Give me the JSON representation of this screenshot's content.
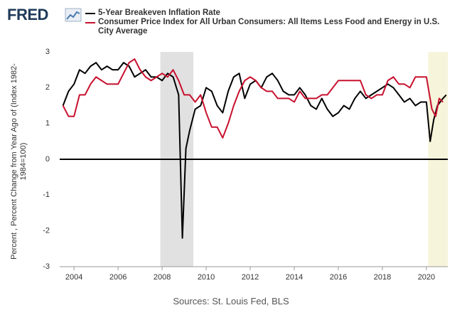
{
  "logo": "FRED",
  "chart_data": {
    "type": "line",
    "ylabel": "Percent , Percent Change from Year Ago of (Index 1982-1984=100)",
    "sources": "Sources: St. Louis Fed, BLS",
    "xlim": [
      2003.35,
      2020.97
    ],
    "ylim": [
      -3,
      3
    ],
    "xticks": [
      2004,
      2006,
      2008,
      2010,
      2012,
      2014,
      2016,
      2018,
      2020
    ],
    "yticks": [
      -3,
      -2,
      -1,
      0,
      1,
      2,
      3
    ],
    "zero_line": true,
    "shaded": [
      {
        "start": 2007.92,
        "end": 2009.42,
        "color": "#e1e1e1"
      },
      {
        "start": 2020.08,
        "end": 2020.97,
        "color": "#f6f4da"
      }
    ],
    "series": [
      {
        "name": "5-Year Breakeven Inflation Rate",
        "color": "#000000",
        "x": [
          2003.5,
          2003.75,
          2004,
          2004.25,
          2004.5,
          2004.75,
          2005,
          2005.25,
          2005.5,
          2005.75,
          2006,
          2006.25,
          2006.5,
          2006.75,
          2007,
          2007.25,
          2007.5,
          2007.75,
          2008,
          2008.25,
          2008.5,
          2008.75,
          2008.92,
          2009.08,
          2009.25,
          2009.5,
          2009.75,
          2010,
          2010.25,
          2010.5,
          2010.75,
          2011,
          2011.25,
          2011.5,
          2011.75,
          2012,
          2012.25,
          2012.5,
          2012.75,
          2013,
          2013.25,
          2013.5,
          2013.75,
          2014,
          2014.25,
          2014.5,
          2014.75,
          2015,
          2015.25,
          2015.5,
          2015.75,
          2016,
          2016.25,
          2016.5,
          2016.75,
          2017,
          2017.25,
          2017.5,
          2017.75,
          2018,
          2018.25,
          2018.5,
          2018.75,
          2019,
          2019.25,
          2019.5,
          2019.75,
          2020,
          2020.17,
          2020.33,
          2020.5,
          2020.75,
          2020.9
        ],
        "values": [
          1.5,
          1.9,
          2.1,
          2.5,
          2.4,
          2.6,
          2.7,
          2.5,
          2.6,
          2.5,
          2.5,
          2.7,
          2.6,
          2.3,
          2.4,
          2.5,
          2.3,
          2.3,
          2.2,
          2.4,
          2.3,
          1.8,
          -2.2,
          0.3,
          0.8,
          1.4,
          1.5,
          2.0,
          1.9,
          1.5,
          1.3,
          1.9,
          2.3,
          2.4,
          1.7,
          2.1,
          2.2,
          2.0,
          2.3,
          2.4,
          2.2,
          1.9,
          1.8,
          1.8,
          2.0,
          1.8,
          1.5,
          1.4,
          1.7,
          1.4,
          1.2,
          1.3,
          1.5,
          1.4,
          1.7,
          1.9,
          1.7,
          1.8,
          1.9,
          2.0,
          2.1,
          2.0,
          1.8,
          1.6,
          1.7,
          1.5,
          1.6,
          1.6,
          0.5,
          1.1,
          1.5,
          1.7,
          1.8
        ]
      },
      {
        "name": "Consumer Price Index for All Urban Consumers: All Items Less Food and Energy in U.S. City Average",
        "color": "#c8102e",
        "x": [
          2003.5,
          2003.75,
          2004,
          2004.25,
          2004.5,
          2004.75,
          2005,
          2005.25,
          2005.5,
          2005.75,
          2006,
          2006.25,
          2006.5,
          2006.75,
          2007,
          2007.25,
          2007.5,
          2007.75,
          2008,
          2008.25,
          2008.5,
          2008.75,
          2009,
          2009.25,
          2009.5,
          2009.75,
          2010,
          2010.25,
          2010.5,
          2010.75,
          2011,
          2011.25,
          2011.5,
          2011.75,
          2012,
          2012.25,
          2012.5,
          2012.75,
          2013,
          2013.25,
          2013.5,
          2013.75,
          2014,
          2014.25,
          2014.5,
          2014.75,
          2015,
          2015.25,
          2015.5,
          2015.75,
          2016,
          2016.25,
          2016.5,
          2016.75,
          2017,
          2017.25,
          2017.5,
          2017.75,
          2018,
          2018.25,
          2018.5,
          2018.75,
          2019,
          2019.25,
          2019.5,
          2019.75,
          2020,
          2020.25,
          2020.42,
          2020.58,
          2020.75
        ],
        "values": [
          1.5,
          1.2,
          1.2,
          1.8,
          1.8,
          2.1,
          2.3,
          2.2,
          2.1,
          2.1,
          2.1,
          2.4,
          2.7,
          2.8,
          2.5,
          2.3,
          2.2,
          2.3,
          2.4,
          2.3,
          2.5,
          2.2,
          1.8,
          1.8,
          1.6,
          1.8,
          1.3,
          0.9,
          0.9,
          0.6,
          1.0,
          1.5,
          1.9,
          2.2,
          2.3,
          2.2,
          2.0,
          1.9,
          1.9,
          1.7,
          1.7,
          1.7,
          1.6,
          1.9,
          1.7,
          1.7,
          1.7,
          1.8,
          1.8,
          2.0,
          2.2,
          2.2,
          2.2,
          2.2,
          2.2,
          1.8,
          1.7,
          1.8,
          1.8,
          2.2,
          2.3,
          2.1,
          2.1,
          2.0,
          2.3,
          2.3,
          2.3,
          1.4,
          1.2,
          1.7,
          1.6
        ]
      }
    ]
  }
}
